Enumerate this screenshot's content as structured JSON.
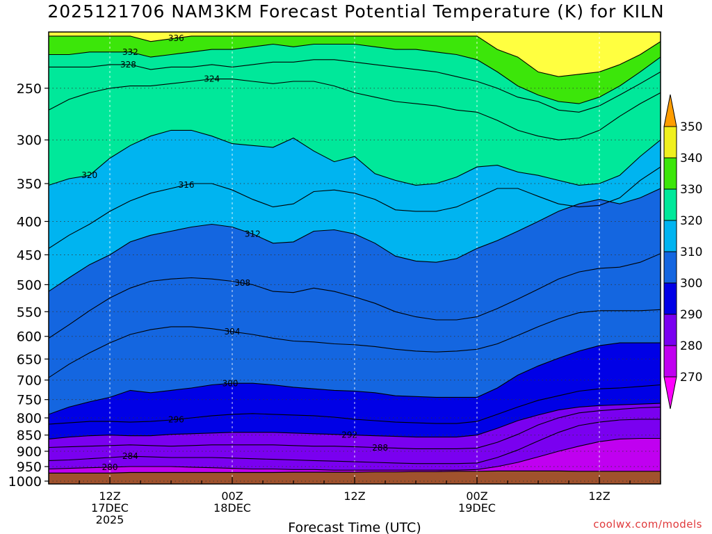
{
  "title": "2025121706 NAM3KM Forecast Potential Temperature (K) for KILN",
  "credit": "coolwx.com/models",
  "chart_data": {
    "type": "heatmap",
    "title": "2025121706 NAM3KM Forecast Potential Temperature (K) for KILN",
    "xlabel": "Forecast Time (UTC)",
    "ylabel": "",
    "y_scale": "log",
    "y_inverted": true,
    "ylim": [
      1010,
      205
    ],
    "xlim": [
      0,
      60
    ],
    "y_ticks": [
      250,
      300,
      350,
      400,
      450,
      500,
      550,
      600,
      650,
      700,
      750,
      800,
      850,
      900,
      950,
      1000
    ],
    "x_ticks": [
      {
        "x": 6,
        "lines": [
          "12Z",
          "17DEC",
          "2025"
        ]
      },
      {
        "x": 18,
        "lines": [
          "00Z",
          "18DEC"
        ]
      },
      {
        "x": 30,
        "lines": [
          "12Z"
        ]
      },
      {
        "x": 42,
        "lines": [
          "00Z",
          "19DEC"
        ]
      },
      {
        "x": 54,
        "lines": [
          "12Z"
        ]
      }
    ],
    "colorbar": {
      "levels": [
        270,
        280,
        290,
        300,
        310,
        320,
        330,
        340,
        350
      ],
      "colors": [
        "#ff00ff",
        "#c000f0",
        "#7a00f0",
        "#0000e6",
        "#1466e0",
        "#00b4f0",
        "#00e89a",
        "#3ce60a",
        "#f0f01e",
        "#ff9d00"
      ],
      "legend_placement": "right"
    },
    "times": [
      0,
      2,
      4,
      6,
      8,
      10,
      12,
      14,
      16,
      18,
      20,
      22,
      24,
      26,
      28,
      30,
      32,
      34,
      36,
      38,
      40,
      42,
      44,
      46,
      48,
      50,
      52,
      54,
      56,
      58,
      60
    ],
    "surface_pressure": [
      972,
      972,
      972,
      972,
      970,
      970,
      970,
      970,
      970,
      970,
      970,
      970,
      969,
      969,
      969,
      969,
      968,
      968,
      967,
      967,
      966,
      966,
      965,
      965,
      965,
      965,
      966,
      966,
      966,
      966,
      966
    ],
    "contours": [
      {
        "level": 336,
        "p": [
          208,
          208,
          208,
          208,
          208,
          212,
          210,
          208,
          208,
          208,
          208,
          208,
          208,
          208,
          208,
          208,
          208,
          208,
          208,
          208,
          208,
          208,
          218,
          224,
          236,
          240,
          238,
          236,
          230,
          222,
          212
        ],
        "label": {
          "t": 12.5,
          "text": "336"
        }
      },
      {
        "level": 332,
        "p": [
          222,
          222,
          220,
          220,
          220,
          224,
          222,
          220,
          218,
          218,
          216,
          214,
          216,
          214,
          214,
          214,
          216,
          218,
          218,
          220,
          222,
          226,
          236,
          248,
          256,
          262,
          264,
          258,
          248,
          236,
          224
        ],
        "label": {
          "t": 8,
          "text": "332"
        }
      },
      {
        "level": 328,
        "p": [
          232,
          232,
          232,
          230,
          230,
          234,
          232,
          232,
          230,
          232,
          230,
          228,
          228,
          226,
          226,
          228,
          230,
          232,
          234,
          236,
          240,
          244,
          250,
          258,
          262,
          270,
          272,
          266,
          256,
          246,
          236
        ],
        "label": {
          "t": 7.8,
          "text": "328"
        }
      },
      {
        "level": 324,
        "p": [
          270,
          260,
          254,
          250,
          248,
          248,
          246,
          244,
          242,
          242,
          244,
          246,
          244,
          244,
          248,
          254,
          258,
          262,
          264,
          266,
          270,
          272,
          280,
          290,
          296,
          300,
          298,
          290,
          276,
          264,
          254
        ],
        "label": {
          "t": 16,
          "text": "324"
        }
      },
      {
        "level": 320,
        "p": [
          352,
          344,
          340,
          320,
          306,
          296,
          290,
          290,
          296,
          304,
          306,
          308,
          298,
          312,
          324,
          318,
          338,
          346,
          352,
          350,
          342,
          330,
          328,
          336,
          340,
          346,
          352,
          350,
          340,
          318,
          300
        ],
        "label": {
          "t": 4,
          "text": "320"
        }
      },
      {
        "level": 316,
        "p": [
          440,
          420,
          404,
          386,
          372,
          362,
          356,
          350,
          350,
          358,
          370,
          380,
          376,
          360,
          358,
          362,
          370,
          384,
          386,
          386,
          380,
          368,
          356,
          356,
          366,
          376,
          380,
          378,
          368,
          346,
          330
        ],
        "label": {
          "t": 13.5,
          "text": "316"
        }
      },
      {
        "level": 312,
        "p": [
          512,
          488,
          466,
          450,
          430,
          420,
          414,
          408,
          404,
          408,
          418,
          432,
          430,
          414,
          412,
          418,
          432,
          452,
          460,
          462,
          456,
          440,
          428,
          414,
          400,
          386,
          376,
          370,
          376,
          368,
          356
        ],
        "label": {
          "t": 20,
          "text": "312"
        }
      },
      {
        "level": 308,
        "p": [
          604,
          576,
          548,
          524,
          506,
          494,
          490,
          488,
          490,
          494,
          500,
          512,
          514,
          506,
          512,
          522,
          534,
          550,
          560,
          566,
          566,
          560,
          544,
          526,
          508,
          490,
          478,
          472,
          470,
          462,
          448
        ],
        "label": {
          "t": 19,
          "text": "308"
        }
      },
      {
        "level": 304,
        "p": [
          694,
          662,
          636,
          614,
          596,
          586,
          580,
          580,
          584,
          590,
          596,
          604,
          610,
          612,
          616,
          618,
          622,
          628,
          632,
          634,
          632,
          628,
          616,
          598,
          580,
          564,
          552,
          548,
          548,
          548,
          546
        ],
        "label": {
          "t": 18,
          "text": "304"
        }
      },
      {
        "level": 300,
        "p": [
          790,
          770,
          756,
          744,
          726,
          732,
          726,
          720,
          712,
          708,
          708,
          712,
          718,
          722,
          726,
          728,
          732,
          740,
          742,
          744,
          744,
          744,
          720,
          688,
          666,
          648,
          632,
          620,
          614,
          614,
          614
        ],
        "label": {
          "t": 17.8,
          "text": "300"
        }
      },
      {
        "level": 296,
        "p": [
          818,
          814,
          810,
          810,
          812,
          810,
          806,
          800,
          794,
          790,
          788,
          790,
          792,
          794,
          798,
          804,
          808,
          812,
          814,
          816,
          816,
          810,
          790,
          770,
          752,
          740,
          728,
          722,
          720,
          716,
          712
        ],
        "label": {
          "t": 12.5,
          "text": "296"
        }
      },
      {
        "level": 292,
        "p": [
          862,
          856,
          852,
          850,
          852,
          852,
          848,
          846,
          844,
          842,
          842,
          842,
          844,
          846,
          848,
          850,
          852,
          854,
          856,
          856,
          856,
          850,
          830,
          808,
          792,
          778,
          770,
          766,
          764,
          762,
          760
        ],
        "label": {
          "t": 29.5,
          "text": "292"
        }
      },
      {
        "level": 288,
        "p": [
          888,
          886,
          884,
          882,
          880,
          882,
          884,
          882,
          880,
          880,
          880,
          880,
          882,
          884,
          884,
          886,
          888,
          890,
          892,
          892,
          892,
          890,
          872,
          848,
          820,
          800,
          786,
          780,
          776,
          772,
          770
        ],
        "label": {
          "t": 32.5,
          "text": "288"
        }
      },
      {
        "level": 284,
        "p": [
          930,
          928,
          924,
          920,
          916,
          918,
          920,
          920,
          920,
          922,
          924,
          926,
          928,
          930,
          932,
          934,
          936,
          938,
          940,
          940,
          940,
          938,
          920,
          896,
          868,
          842,
          822,
          812,
          806,
          804,
          804
        ],
        "label": {
          "t": 8,
          "text": "284"
        }
      },
      {
        "level": 280,
        "p": [
          958,
          956,
          954,
          952,
          950,
          950,
          950,
          952,
          954,
          956,
          958,
          958,
          960,
          960,
          962,
          962,
          962,
          962,
          962,
          962,
          962,
          960,
          950,
          936,
          918,
          900,
          884,
          870,
          862,
          860,
          860
        ],
        "label": {
          "t": 6,
          "text": "280"
        }
      },
      {
        "level": 276,
        "p": [
          972,
          972,
          972,
          972,
          970,
          970,
          970,
          970,
          970,
          970,
          970,
          970,
          969,
          969,
          969,
          969,
          968,
          968,
          967,
          967,
          966,
          966,
          965,
          965,
          950,
          928,
          904,
          888,
          880,
          878,
          878
        ]
      }
    ]
  }
}
